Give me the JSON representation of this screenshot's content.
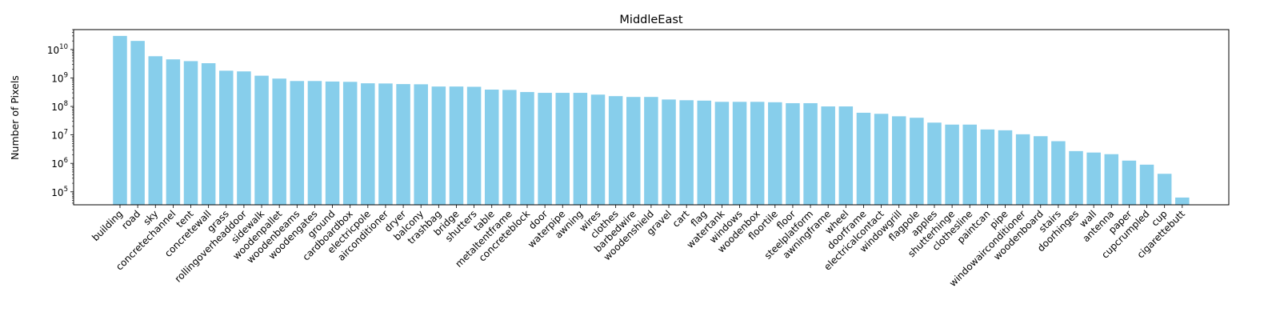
{
  "chart_data": {
    "type": "bar",
    "title": "MiddleEast",
    "xlabel": "",
    "ylabel": "Number of Pixels",
    "yscale": "log",
    "ylim": [
      35000,
      50000000000
    ],
    "yticks": [
      {
        "value": 100000,
        "base": "10",
        "exp": "5"
      },
      {
        "value": 1000000,
        "base": "10",
        "exp": "6"
      },
      {
        "value": 10000000,
        "base": "10",
        "exp": "7"
      },
      {
        "value": 100000000,
        "base": "10",
        "exp": "8"
      },
      {
        "value": 1000000000,
        "base": "10",
        "exp": "9"
      },
      {
        "value": 10000000000,
        "base": "10",
        "exp": "10"
      }
    ],
    "bar_color": "#87CEEB",
    "grid": false,
    "categories": [
      "building",
      "road",
      "sky",
      "concretechannel",
      "tent",
      "concretewall",
      "grass",
      "rollingoverheaddoor",
      "sidewalk",
      "woodenpallet",
      "woodenbeams",
      "woodengates",
      "ground",
      "cardboardbox",
      "electricpole",
      "airconditioner",
      "dryer",
      "balcony",
      "trashbag",
      "bridge",
      "shutters",
      "table",
      "metaltentframe",
      "concreteblock",
      "door",
      "waterpipe",
      "awning",
      "wires",
      "clothes",
      "barbedwire",
      "woodenshield",
      "gravel",
      "cart",
      "flag",
      "watertank",
      "windows",
      "woodenbox",
      "floortile",
      "floor",
      "steelplatform",
      "awningframe",
      "wheel",
      "doorframe",
      "electricalcontact",
      "windowgrill",
      "flagpole",
      "apples",
      "shutterhinge",
      "clothesline",
      "paintcan",
      "pipe",
      "windowairconditioner",
      "woodenboard",
      "stairs",
      "doorhinges",
      "wall",
      "antenna",
      "paper",
      "cupcrumpled",
      "cup",
      "cigarettebutt"
    ],
    "values": [
      30000000000,
      20000000000,
      5800000000,
      4500000000,
      3900000000,
      3300000000,
      1800000000,
      1700000000,
      1200000000,
      950000000,
      780000000,
      780000000,
      750000000,
      730000000,
      650000000,
      640000000,
      610000000,
      600000000,
      500000000,
      500000000,
      490000000,
      390000000,
      380000000,
      320000000,
      300000000,
      300000000,
      300000000,
      260000000,
      230000000,
      215000000,
      215000000,
      175000000,
      165000000,
      160000000,
      145000000,
      145000000,
      145000000,
      140000000,
      130000000,
      130000000,
      100000000,
      100000000,
      60000000,
      55000000,
      45000000,
      40000000,
      27000000,
      23000000,
      23000000,
      15500000,
      14500000,
      10500000,
      9000000,
      6000000,
      2700000,
      2400000,
      2100000,
      1250000,
      900000,
      430000,
      63000
    ]
  }
}
